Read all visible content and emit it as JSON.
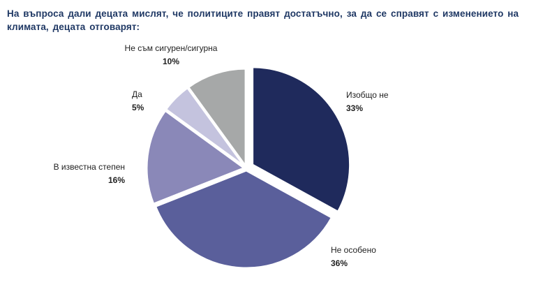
{
  "chart_data": {
    "type": "pie",
    "title": "На въпроса дали децата мислят, че политиците правят достатъчно, за да се справят с изменението на климата, децата отговарят:",
    "slices": [
      {
        "label": "Изобщо не",
        "value": 33,
        "value_label": "33%",
        "color": "#1F2A5C",
        "exploded": true
      },
      {
        "label": "Не особено",
        "value": 36,
        "value_label": "36%",
        "color": "#5A5F9B",
        "exploded": false
      },
      {
        "label": "В известна степен",
        "value": 16,
        "value_label": "16%",
        "color": "#8A88B8",
        "exploded": false
      },
      {
        "label": "Да",
        "value": 5,
        "value_label": "5%",
        "color": "#C4C3DE",
        "exploded": false
      },
      {
        "label": "Не съм сигурен/сигурна",
        "value": 10,
        "value_label": "10%",
        "color": "#A6A8A8",
        "exploded": false
      }
    ],
    "start_angle_deg": 0,
    "direction": "clockwise",
    "legend": "none"
  }
}
